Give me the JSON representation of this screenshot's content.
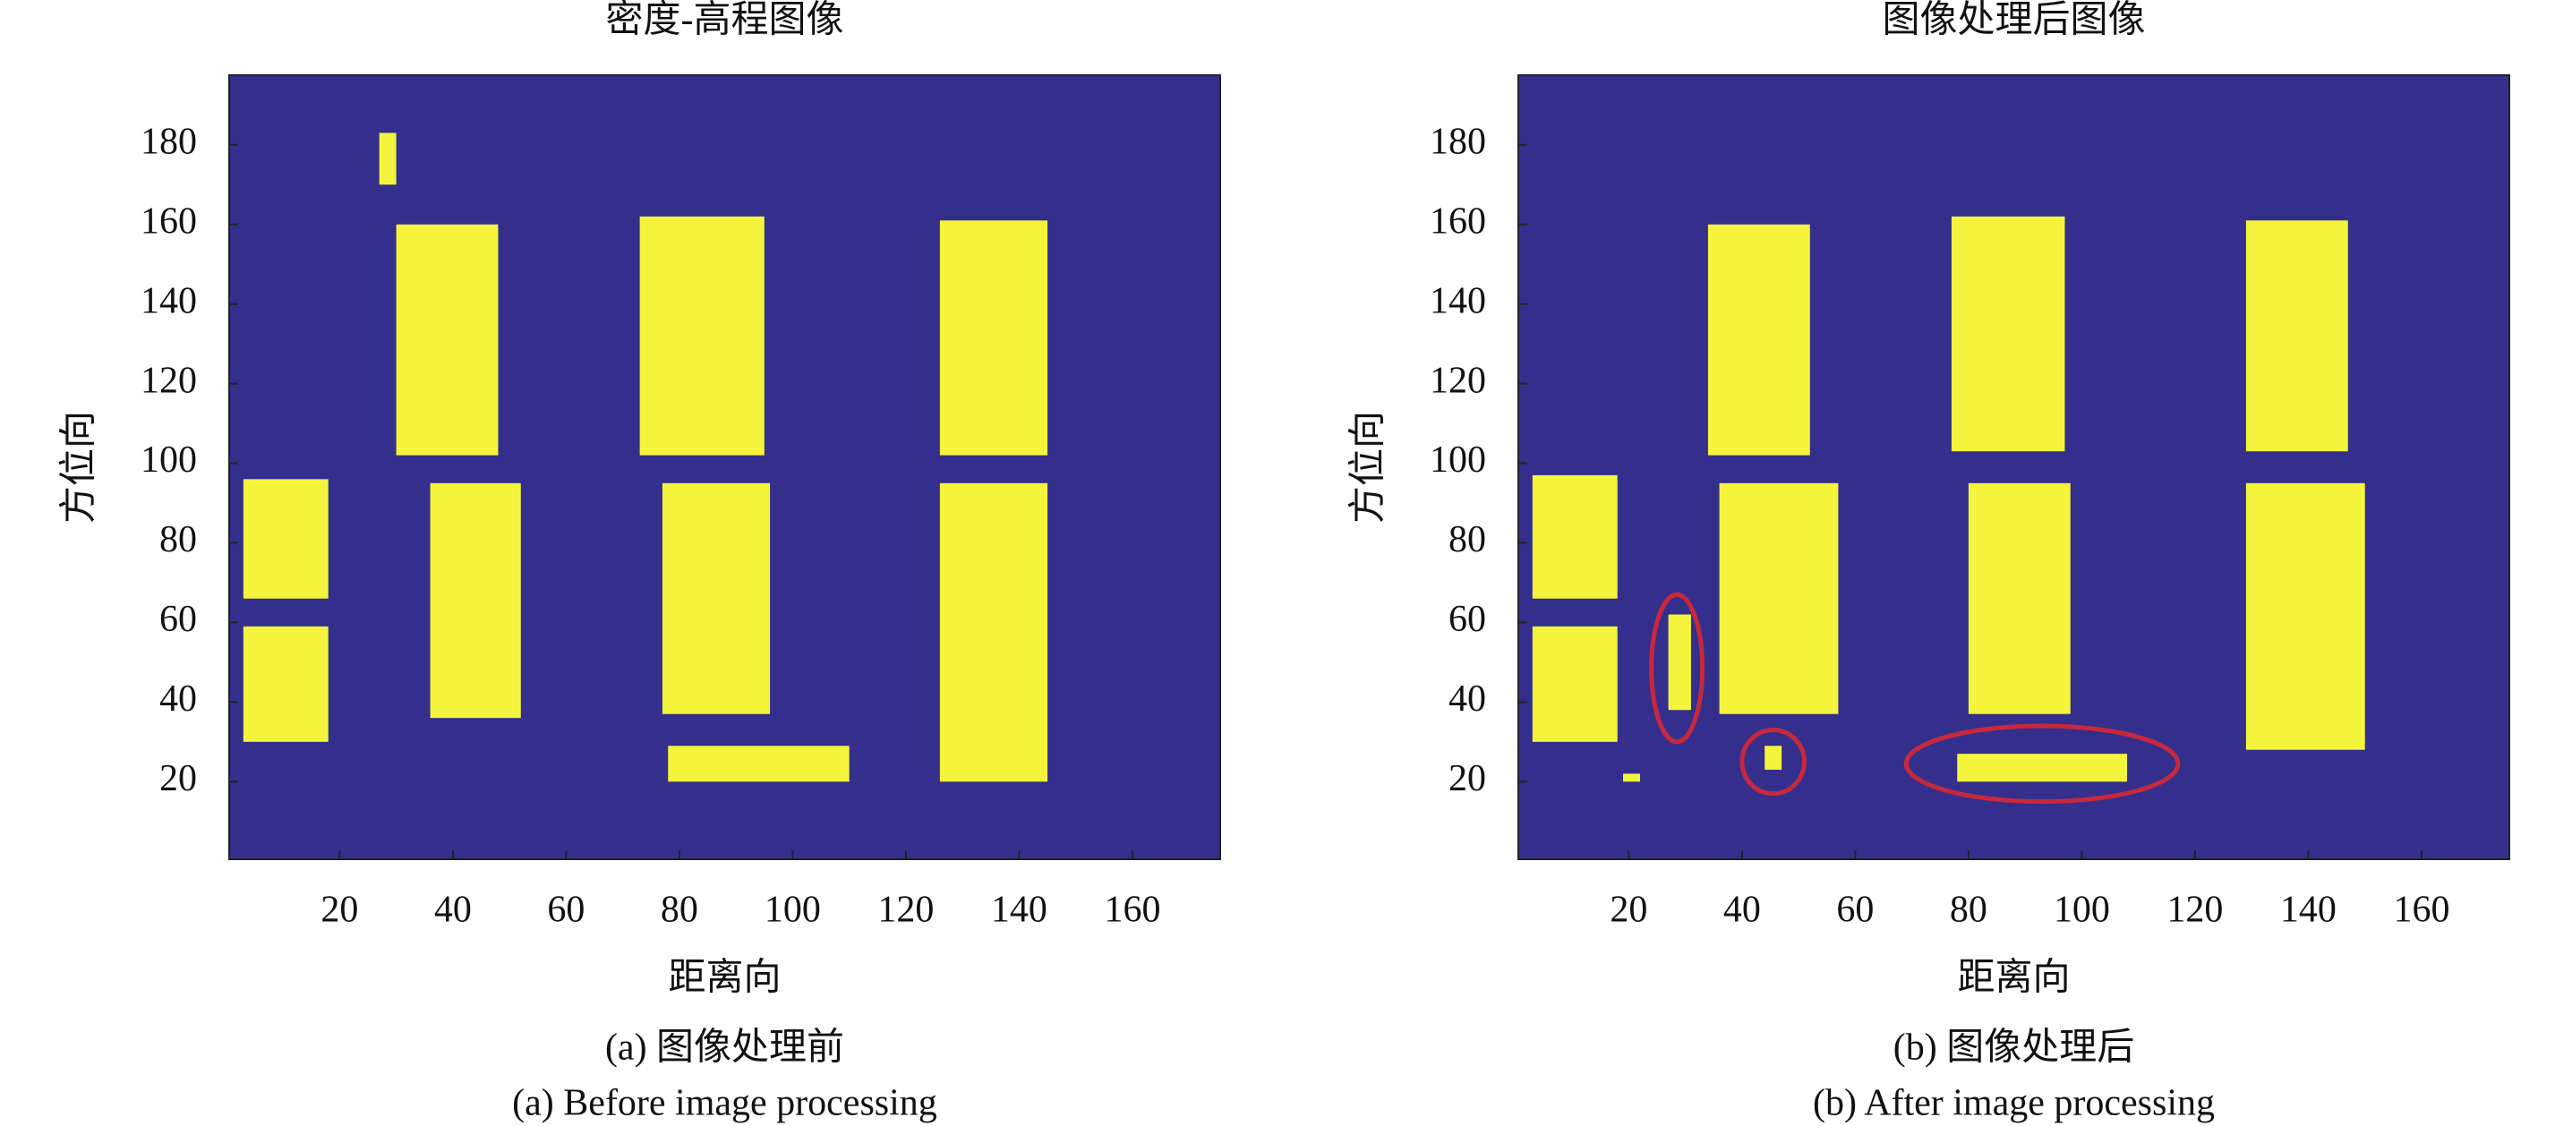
{
  "chart_data": [
    {
      "type": "heatmap",
      "title": "密度-高程图像",
      "xlabel": "距离向",
      "ylabel": "方位向",
      "caption": "(a) 图像处理前",
      "caption_en": "(a) Before image processing",
      "background": "#342f8c",
      "color": "#f4f43c",
      "xlim": [
        0.5,
        175.5
      ],
      "ylim": [
        0.5,
        197.5
      ],
      "xticks": [
        20,
        40,
        60,
        80,
        100,
        120,
        140,
        160
      ],
      "yticks": [
        20,
        40,
        60,
        80,
        100,
        120,
        140,
        160,
        180
      ],
      "regions": [
        {
          "x": [
            30,
            48
          ],
          "y": [
            102,
            160
          ]
        },
        {
          "x": [
            36,
            52
          ],
          "y": [
            36,
            95
          ]
        },
        {
          "x": [
            73,
            95
          ],
          "y": [
            102,
            162
          ]
        },
        {
          "x": [
            77,
            96
          ],
          "y": [
            37,
            95
          ]
        },
        {
          "x": [
            126,
            145
          ],
          "y": [
            102,
            161
          ]
        },
        {
          "x": [
            126,
            145
          ],
          "y": [
            20,
            95
          ]
        },
        {
          "x": [
            3,
            18
          ],
          "y": [
            66,
            96
          ]
        },
        {
          "x": [
            3,
            18
          ],
          "y": [
            30,
            59
          ]
        },
        {
          "x": [
            78,
            110
          ],
          "y": [
            20,
            29
          ]
        },
        {
          "x": [
            27,
            30
          ],
          "y": [
            170,
            183
          ]
        }
      ]
    },
    {
      "type": "heatmap",
      "title": "图像处理后图像",
      "xlabel": "距离向",
      "ylabel": "方位向",
      "caption": "(b) 图像处理后",
      "caption_en": "(b) After image processing",
      "background": "#342f8c",
      "color": "#f4f43c",
      "highlight_color": "#c8283c",
      "xlim": [
        0.5,
        175.5
      ],
      "ylim": [
        0.5,
        197.5
      ],
      "xticks": [
        20,
        40,
        60,
        80,
        100,
        120,
        140,
        160
      ],
      "yticks": [
        20,
        40,
        60,
        80,
        100,
        120,
        140,
        160,
        180
      ],
      "regions": [
        {
          "x": [
            34,
            52
          ],
          "y": [
            102,
            160
          ]
        },
        {
          "x": [
            36,
            57
          ],
          "y": [
            37,
            95
          ]
        },
        {
          "x": [
            77,
            97
          ],
          "y": [
            103,
            162
          ]
        },
        {
          "x": [
            80,
            98
          ],
          "y": [
            37,
            95
          ]
        },
        {
          "x": [
            129,
            147
          ],
          "y": [
            103,
            161
          ]
        },
        {
          "x": [
            129,
            150
          ],
          "y": [
            28,
            95
          ]
        },
        {
          "x": [
            3,
            18
          ],
          "y": [
            66,
            97
          ]
        },
        {
          "x": [
            3,
            18
          ],
          "y": [
            30,
            59
          ]
        },
        {
          "x": [
            19,
            22
          ],
          "y": [
            20,
            22
          ]
        },
        {
          "x": [
            27,
            31
          ],
          "y": [
            38,
            62
          ]
        },
        {
          "x": [
            44,
            47
          ],
          "y": [
            23,
            29
          ]
        },
        {
          "x": [
            78,
            108
          ],
          "y": [
            20,
            27
          ]
        }
      ],
      "highlights": [
        {
          "x": [
            24,
            33
          ],
          "y": [
            30,
            67
          ]
        },
        {
          "x": [
            40,
            51
          ],
          "y": [
            17,
            33
          ]
        },
        {
          "x": [
            69,
            117
          ],
          "y": [
            15,
            34
          ]
        }
      ]
    }
  ]
}
